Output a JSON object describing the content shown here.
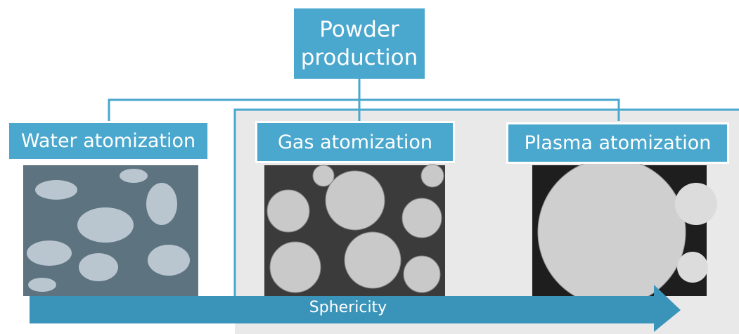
{
  "title": "Powder production",
  "methods": [
    {
      "label": "Water atomization"
    },
    {
      "label": "Gas atomization"
    },
    {
      "label": "Plasma atomization"
    }
  ],
  "arrow": {
    "label": "Sphericity"
  }
}
